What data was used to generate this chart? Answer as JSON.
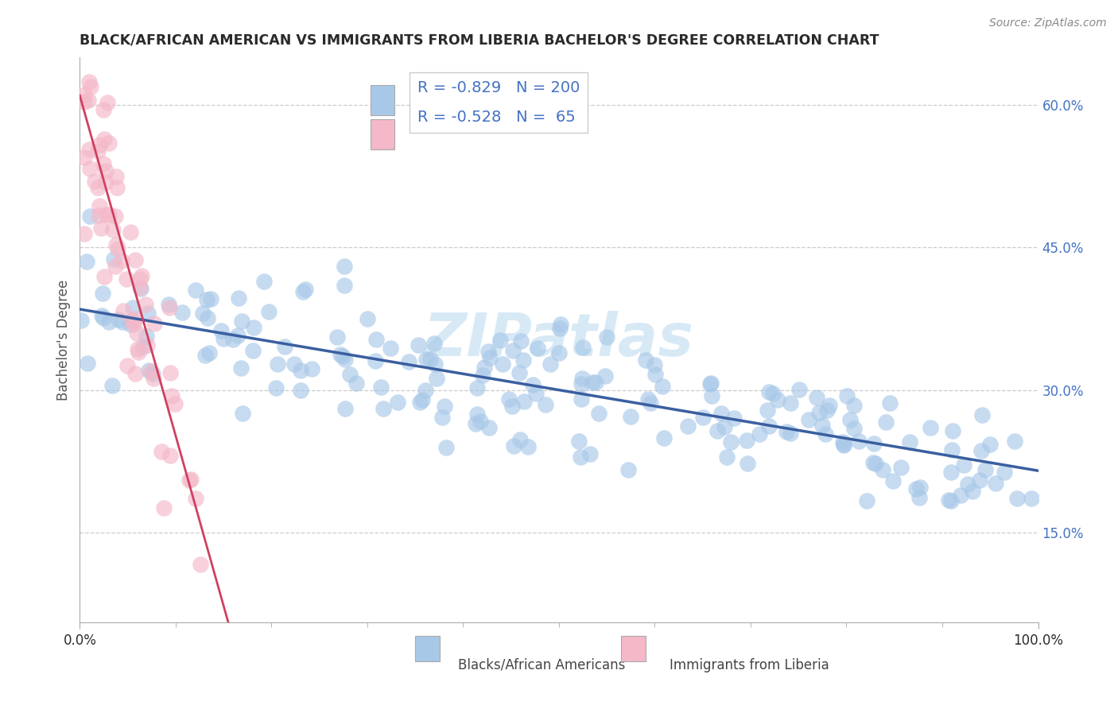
{
  "title": "BLACK/AFRICAN AMERICAN VS IMMIGRANTS FROM LIBERIA BACHELOR'S DEGREE CORRELATION CHART",
  "source": "Source: ZipAtlas.com",
  "ylabel": "Bachelor's Degree",
  "watermark": "ZIPatlas",
  "legend_blue_R": -0.829,
  "legend_blue_N": 200,
  "legend_pink_R": -0.528,
  "legend_pink_N": 65,
  "label_blue": "Blacks/African Americans",
  "label_pink": "Immigrants from Liberia",
  "blue_color": "#a8c8e8",
  "blue_line_color": "#3a5fa0",
  "pink_color": "#f4b8c8",
  "pink_line_color": "#d04060",
  "blue_trend_x": [
    0.0,
    1.0
  ],
  "blue_trend_y": [
    0.385,
    0.215
  ],
  "pink_trend_x": [
    0.0,
    0.155
  ],
  "pink_trend_y": [
    0.61,
    0.055
  ],
  "xlim": [
    0.0,
    1.0
  ],
  "ylim": [
    0.055,
    0.65
  ],
  "xtick_positions": [
    0.0,
    1.0
  ],
  "xticklabels": [
    "0.0%",
    "100.0%"
  ],
  "ytick_positions": [
    0.15,
    0.3,
    0.45,
    0.6
  ],
  "ytick_labels": [
    "15.0%",
    "30.0%",
    "45.0%",
    "60.0%"
  ],
  "grid_color": "#cccccc",
  "background_color": "#ffffff",
  "title_color": "#2a2a2a",
  "title_fontsize": 12.5,
  "ytick_color": "#4472c4",
  "xtick_color": "#2a2a2a",
  "axis_label_color": "#555555",
  "source_color": "#888888",
  "legend_text_color": "#4472c4",
  "legend_R_color": "#2a2a2a",
  "scatter_size": 220,
  "scatter_alpha": 0.65
}
